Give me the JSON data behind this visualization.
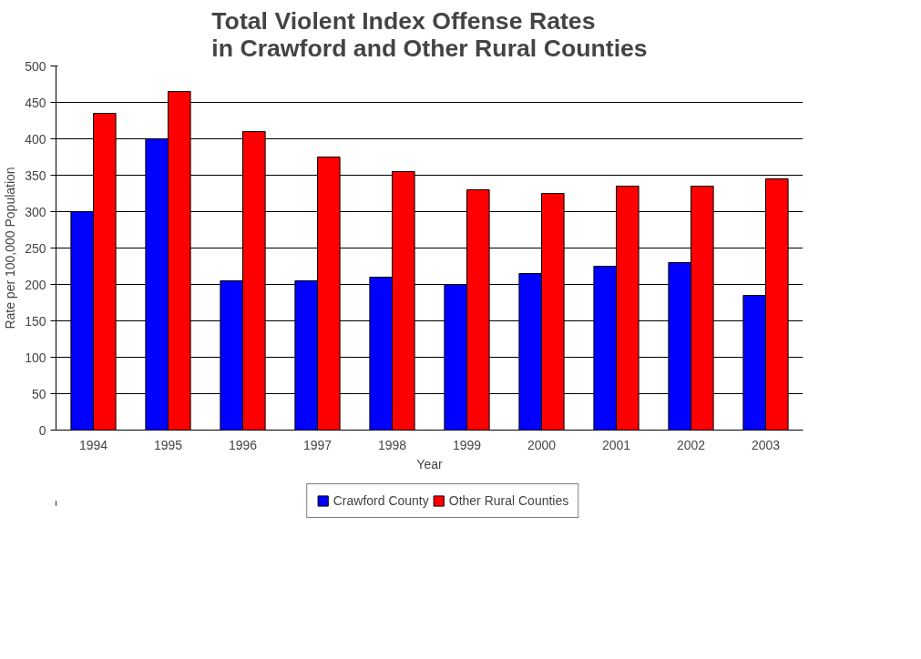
{
  "chart_data": {
    "type": "bar",
    "title": "Total Violent Index Offense Rates\nin Crawford and Other Rural Counties",
    "xlabel": "Year",
    "ylabel": "Rate per 100,000 Population",
    "categories": [
      "1994",
      "1995",
      "1996",
      "1997",
      "1998",
      "1999",
      "2000",
      "2001",
      "2002",
      "2003"
    ],
    "series": [
      {
        "name": "Crawford County",
        "color": "#0000ff",
        "values": [
          300,
          400,
          205,
          205,
          210,
          200,
          215,
          225,
          230,
          185
        ]
      },
      {
        "name": "Other Rural Counties",
        "color": "#ff0000",
        "values": [
          435,
          465,
          410,
          375,
          355,
          330,
          325,
          335,
          335,
          345
        ]
      }
    ],
    "ylim": [
      0,
      500
    ],
    "yticks": [
      0,
      50,
      100,
      150,
      200,
      250,
      300,
      350,
      400,
      450,
      500
    ],
    "grid": "y",
    "legend": "bottom"
  }
}
